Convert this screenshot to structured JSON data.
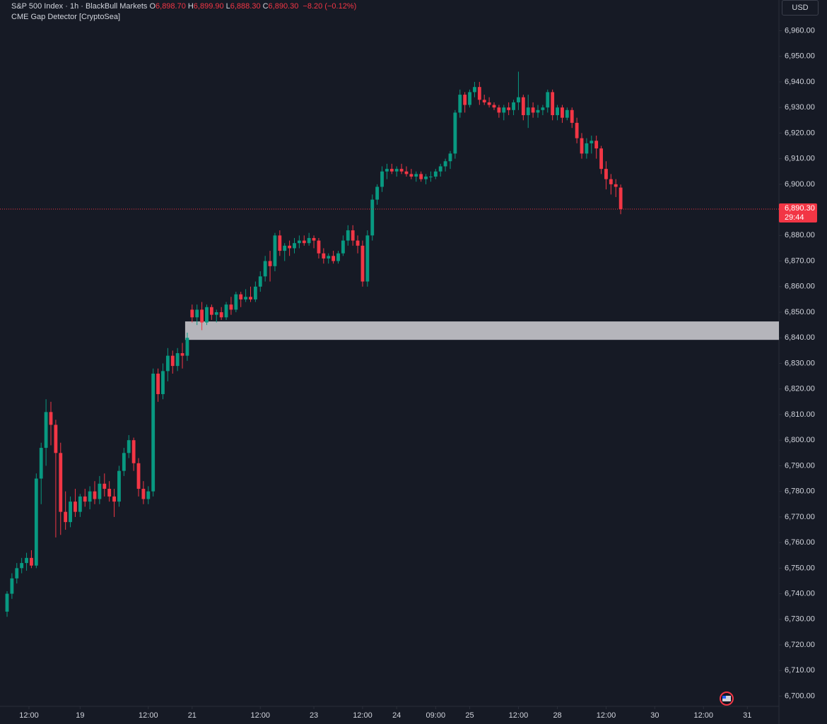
{
  "chart_data": {
    "type": "candlestick",
    "title": "S&P 500 Index · 1h · BlackBull Markets",
    "ohlc_header": [
      {
        "label": "O",
        "value": "6,898.70"
      },
      {
        "label": "H",
        "value": "6,899.90"
      },
      {
        "label": "L",
        "value": "6,888.30"
      },
      {
        "label": "C",
        "value": "6,890.30"
      }
    ],
    "change": "−8.20 (−0.12%)",
    "indicator": "CME Gap Detector [CryptoSea]",
    "currency": "USD",
    "up_color": "#089981",
    "down_color": "#f23645",
    "ohlc": [
      [
        6733,
        6741,
        6731,
        6740
      ],
      [
        6740,
        6748,
        6738,
        6746
      ],
      [
        6746,
        6752,
        6744,
        6750
      ],
      [
        6750,
        6754,
        6748,
        6752
      ],
      [
        6752,
        6756,
        6749,
        6754
      ],
      [
        6754,
        6757,
        6750,
        6751
      ],
      [
        6751,
        6787,
        6750,
        6785
      ],
      [
        6785,
        6799,
        6775,
        6797
      ],
      [
        6797,
        6816,
        6790,
        6811
      ],
      [
        6811,
        6815,
        6798,
        6806
      ],
      [
        6806,
        6808,
        6762,
        6795
      ],
      [
        6795,
        6799,
        6763,
        6772
      ],
      [
        6772,
        6780,
        6765,
        6768
      ],
      [
        6768,
        6778,
        6766,
        6776
      ],
      [
        6776,
        6781,
        6770,
        6772
      ],
      [
        6772,
        6779,
        6770,
        6778
      ],
      [
        6778,
        6781,
        6774,
        6776
      ],
      [
        6776,
        6782,
        6773,
        6780
      ],
      [
        6780,
        6784,
        6775,
        6777
      ],
      [
        6777,
        6786,
        6775,
        6783
      ],
      [
        6783,
        6787,
        6778,
        6781
      ],
      [
        6781,
        6784,
        6776,
        6778
      ],
      [
        6778,
        6781,
        6770,
        6776
      ],
      [
        6776,
        6790,
        6774,
        6788
      ],
      [
        6788,
        6797,
        6786,
        6795
      ],
      [
        6795,
        6802,
        6793,
        6800
      ],
      [
        6800,
        6801,
        6788,
        6791
      ],
      [
        6791,
        6793,
        6778,
        6781
      ],
      [
        6781,
        6784,
        6775,
        6777
      ],
      [
        6777,
        6782,
        6775,
        6780
      ],
      [
        6780,
        6828,
        6778,
        6826
      ],
      [
        6826,
        6828,
        6815,
        6818
      ],
      [
        6818,
        6830,
        6816,
        6827
      ],
      [
        6827,
        6836,
        6823,
        6833
      ],
      [
        6833,
        6835,
        6826,
        6829
      ],
      [
        6829,
        6836,
        6827,
        6834
      ],
      [
        6834,
        6838,
        6828,
        6833
      ],
      [
        6833,
        6842,
        6831,
        6840
      ],
      [
        6851,
        6853,
        6846,
        6848
      ],
      [
        6848,
        6853,
        6845,
        6851
      ],
      [
        6851,
        6854,
        6843,
        6846
      ],
      [
        6846,
        6853,
        6845,
        6852
      ],
      [
        6852,
        6853,
        6847,
        6849
      ],
      [
        6849,
        6851,
        6846,
        6850
      ],
      [
        6850,
        6852,
        6847,
        6848
      ],
      [
        6848,
        6854,
        6847,
        6853
      ],
      [
        6853,
        6856,
        6849,
        6851
      ],
      [
        6851,
        6858,
        6850,
        6857
      ],
      [
        6857,
        6858,
        6852,
        6855
      ],
      [
        6855,
        6859,
        6854,
        6856
      ],
      [
        6856,
        6860,
        6854,
        6855
      ],
      [
        6855,
        6862,
        6854,
        6860
      ],
      [
        6860,
        6866,
        6858,
        6864
      ],
      [
        6864,
        6872,
        6862,
        6870
      ],
      [
        6870,
        6874,
        6862,
        6868
      ],
      [
        6868,
        6881,
        6866,
        6880
      ],
      [
        6880,
        6882,
        6872,
        6874
      ],
      [
        6874,
        6877,
        6870,
        6876
      ],
      [
        6876,
        6878,
        6872,
        6875
      ],
      [
        6875,
        6879,
        6873,
        6877
      ],
      [
        6877,
        6880,
        6875,
        6878
      ],
      [
        6878,
        6880,
        6876,
        6877
      ],
      [
        6877,
        6881,
        6876,
        6879
      ],
      [
        6879,
        6880,
        6875,
        6878
      ],
      [
        6878,
        6879,
        6871,
        6873
      ],
      [
        6873,
        6875,
        6869,
        6871
      ],
      [
        6871,
        6873,
        6869,
        6872
      ],
      [
        6872,
        6874,
        6869,
        6870
      ],
      [
        6870,
        6874,
        6869,
        6873
      ],
      [
        6873,
        6880,
        6872,
        6878
      ],
      [
        6878,
        6884,
        6876,
        6882
      ],
      [
        6882,
        6884,
        6876,
        6878
      ],
      [
        6878,
        6880,
        6873,
        6876
      ],
      [
        6876,
        6878,
        6860,
        6862
      ],
      [
        6862,
        6882,
        6860,
        6880
      ],
      [
        6880,
        6896,
        6878,
        6894
      ],
      [
        6894,
        6900,
        6892,
        6899
      ],
      [
        6899,
        6907,
        6897,
        6905
      ],
      [
        6905,
        6908,
        6902,
        6906
      ],
      [
        6906,
        6908,
        6904,
        6905
      ],
      [
        6905,
        6907,
        6903,
        6906
      ],
      [
        6906,
        6908,
        6904,
        6905
      ],
      [
        6905,
        6907,
        6903,
        6904
      ],
      [
        6904,
        6906,
        6902,
        6903
      ],
      [
        6903,
        6905,
        6901,
        6904
      ],
      [
        6904,
        6905,
        6901,
        6902
      ],
      [
        6902,
        6904,
        6900,
        6903
      ],
      [
        6903,
        6905,
        6901,
        6903
      ],
      [
        6903,
        6906,
        6902,
        6905
      ],
      [
        6905,
        6908,
        6903,
        6907
      ],
      [
        6907,
        6910,
        6905,
        6909
      ],
      [
        6909,
        6913,
        6906,
        6912
      ],
      [
        6912,
        6929,
        6910,
        6928
      ],
      [
        6928,
        6937,
        6926,
        6935
      ],
      [
        6935,
        6936,
        6928,
        6931
      ],
      [
        6931,
        6937,
        6930,
        6936
      ],
      [
        6936,
        6940,
        6934,
        6938
      ],
      [
        6938,
        6940,
        6931,
        6933
      ],
      [
        6933,
        6935,
        6931,
        6932
      ],
      [
        6932,
        6934,
        6930,
        6931
      ],
      [
        6931,
        6932,
        6929,
        6930
      ],
      [
        6930,
        6931,
        6926,
        6928
      ],
      [
        6928,
        6931,
        6925,
        6930
      ],
      [
        6930,
        6932,
        6927,
        6929
      ],
      [
        6929,
        6933,
        6927,
        6932
      ],
      [
        6932,
        6944,
        6929,
        6934
      ],
      [
        6934,
        6935,
        6925,
        6927
      ],
      [
        6927,
        6935,
        6922,
        6930
      ],
      [
        6930,
        6932,
        6926,
        6928
      ],
      [
        6928,
        6931,
        6926,
        6929
      ],
      [
        6929,
        6931,
        6927,
        6930
      ],
      [
        6930,
        6937,
        6928,
        6936
      ],
      [
        6936,
        6937,
        6925,
        6927
      ],
      [
        6927,
        6931,
        6925,
        6930
      ],
      [
        6930,
        6931,
        6924,
        6926
      ],
      [
        6926,
        6930,
        6925,
        6929
      ],
      [
        6929,
        6930,
        6922,
        6924
      ],
      [
        6924,
        6926,
        6916,
        6918
      ],
      [
        6918,
        6920,
        6910,
        6912
      ],
      [
        6912,
        6918,
        6910,
        6916
      ],
      [
        6916,
        6919,
        6912,
        6917
      ],
      [
        6917,
        6919,
        6910,
        6914
      ],
      [
        6914,
        6915,
        6904,
        6906
      ],
      [
        6906,
        6909,
        6898,
        6902
      ],
      [
        6902,
        6904,
        6896,
        6900
      ],
      [
        6900,
        6902,
        6895,
        6899
      ],
      [
        6898.7,
        6899.9,
        6888.3,
        6890.3
      ]
    ],
    "xlim": [
      -1.45,
      158.2
    ],
    "xticks": [
      {
        "value": 4.5,
        "label": "12:00"
      },
      {
        "value": 15,
        "label": "19"
      },
      {
        "value": 29,
        "label": "12:00"
      },
      {
        "value": 38,
        "label": "21"
      },
      {
        "value": 52,
        "label": "12:00"
      },
      {
        "value": 63,
        "label": "23"
      },
      {
        "value": 73,
        "label": "12:00"
      },
      {
        "value": 80,
        "label": "24"
      },
      {
        "value": 88,
        "label": "09:00"
      },
      {
        "value": 95,
        "label": "25"
      },
      {
        "value": 105,
        "label": "12:00"
      },
      {
        "value": 113,
        "label": "28"
      },
      {
        "value": 123,
        "label": "12:00"
      },
      {
        "value": 133,
        "label": "30"
      },
      {
        "value": 143,
        "label": "12:00"
      },
      {
        "value": 152,
        "label": "31"
      }
    ],
    "ylim": [
      6696,
      6972
    ],
    "yticks": [
      {
        "value": 6700,
        "label": "6,700.00"
      },
      {
        "value": 6710,
        "label": "6,710.00"
      },
      {
        "value": 6720,
        "label": "6,720.00"
      },
      {
        "value": 6730,
        "label": "6,730.00"
      },
      {
        "value": 6740,
        "label": "6,740.00"
      },
      {
        "value": 6750,
        "label": "6,750.00"
      },
      {
        "value": 6760,
        "label": "6,760.00"
      },
      {
        "value": 6770,
        "label": "6,770.00"
      },
      {
        "value": 6780,
        "label": "6,780.00"
      },
      {
        "value": 6790,
        "label": "6,790.00"
      },
      {
        "value": 6800,
        "label": "6,800.00"
      },
      {
        "value": 6810,
        "label": "6,810.00"
      },
      {
        "value": 6820,
        "label": "6,820.00"
      },
      {
        "value": 6830,
        "label": "6,830.00"
      },
      {
        "value": 6840,
        "label": "6,840.00"
      },
      {
        "value": 6850,
        "label": "6,850.00"
      },
      {
        "value": 6860,
        "label": "6,860.00"
      },
      {
        "value": 6870,
        "label": "6,870.00"
      },
      {
        "value": 6880,
        "label": "6,880.00"
      },
      {
        "value": 6890,
        "label": "6,890.00"
      },
      {
        "value": 6900,
        "label": "6,900.00"
      },
      {
        "value": 6910,
        "label": "6,910.00"
      },
      {
        "value": 6920,
        "label": "6,920.00"
      },
      {
        "value": 6930,
        "label": "6,930.00"
      },
      {
        "value": 6940,
        "label": "6,940.00"
      },
      {
        "value": 6950,
        "label": "6,950.00"
      },
      {
        "value": 6960,
        "label": "6,960.00"
      }
    ],
    "gap_zone": {
      "start": 37,
      "high": 6846.4,
      "low": 6839.2,
      "color": "#d1d1d6"
    },
    "last_price": {
      "value": 6890.3,
      "label": "6,890.30",
      "countdown": "29:44"
    }
  }
}
